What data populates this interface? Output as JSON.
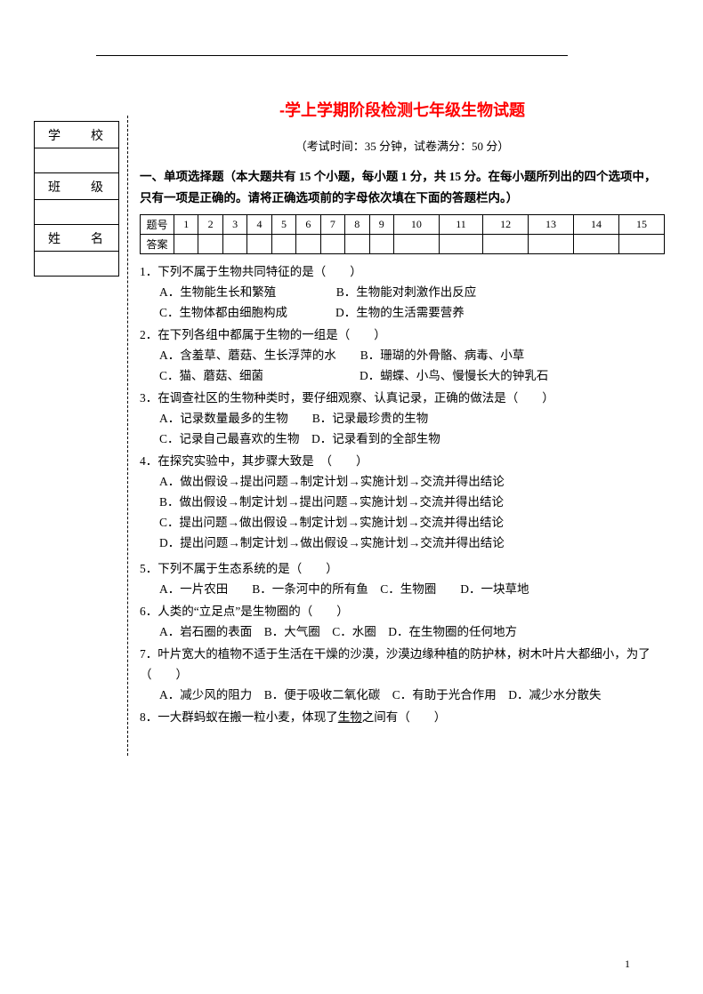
{
  "page_number": "1",
  "info_labels": {
    "school": "学　校",
    "class": "班　级",
    "name": "姓　名"
  },
  "title": "-学上学期阶段检测七年级生物试题",
  "exam_info": "（考试时间：35 分钟，试卷满分：50 分）",
  "section1_head": "一、单项选择题（本大题共有 15 个小题，每小题 1 分，共 15 分。在每小题所列出的四个选项中，只有一项是正确的。请将正确选项前的字母依次填在下面的答题栏内。）",
  "grid_row1_label": "题号",
  "grid_row2_label": "答案",
  "grid_numbers": [
    "1",
    "2",
    "3",
    "4",
    "5",
    "6",
    "7",
    "8",
    "9",
    "10",
    "11",
    "12",
    "13",
    "14",
    "15"
  ],
  "questions": [
    {
      "n": "1",
      "stem": "下列不属于生物共同特征的是（　　）",
      "opts": [
        "A．生物能生长和繁殖　　　　　B．生物能对刺激作出反应",
        "C．生物体都由细胞构成　　　　D．生物的生活需要营养"
      ]
    },
    {
      "n": "2",
      "stem": "在下列各组中都属于生物的一组是（　　）",
      "opts": [
        "A．含羞草、蘑菇、生长浮萍的水　　B．珊瑚的外骨骼、病毒、小草",
        "C．猫、蘑菇、细菌　　　　　　　　D．蝴蝶、小鸟、慢慢长大的钟乳石"
      ]
    },
    {
      "n": "3",
      "stem": "在调查社区的生物种类时，要仔细观察、认真记录，正确的做法是（　　）",
      "opts": [
        "A．记录数量最多的生物　　B．记录最珍贵的生物",
        "C．记录自己最喜欢的生物　D．记录看到的全部生物"
      ]
    },
    {
      "n": "4",
      "stem": "在探究实验中，其步骤大致是　（　　）",
      "opts": [
        "A．做出假设→提出问题→制定计划→实施计划→交流并得出结论",
        "B．做出假设→制定计划→提出问题→实施计划→交流并得出结论",
        "C．提出问题→做出假设→制定计划→实施计划→交流并得出结论",
        "D．提出问题→制定计划→做出假设→实施计划→交流并得出结论"
      ]
    },
    {
      "n": "5",
      "stem": "下列不属于生态系统的是（　　）",
      "opts": [
        "A．一片农田　　B．一条河中的所有鱼　C．生物圈　　D．一块草地"
      ]
    },
    {
      "n": "6",
      "stem": "人类的“立足点”是生物圈的（　　）",
      "opts": [
        "A．岩石圈的表面　B．大气圈　C．水圈　D．在生物圈的任何地方"
      ]
    },
    {
      "n": "7",
      "stem": "叶片宽大的植物不适于生活在干燥的沙漠，沙漠边缘种植的防护林，树木叶片大都细小，为了（　　）",
      "opts": [
        "A．减少风的阻力　B．便于吸收二氧化碳　C．有助于光合作用　D．减少水分散失"
      ]
    },
    {
      "n": "8",
      "stem": "一大群蚂蚁在搬一粒小麦，体现了",
      "underline": "生物",
      "stem_tail": "之间有（　　）",
      "opts": []
    }
  ]
}
